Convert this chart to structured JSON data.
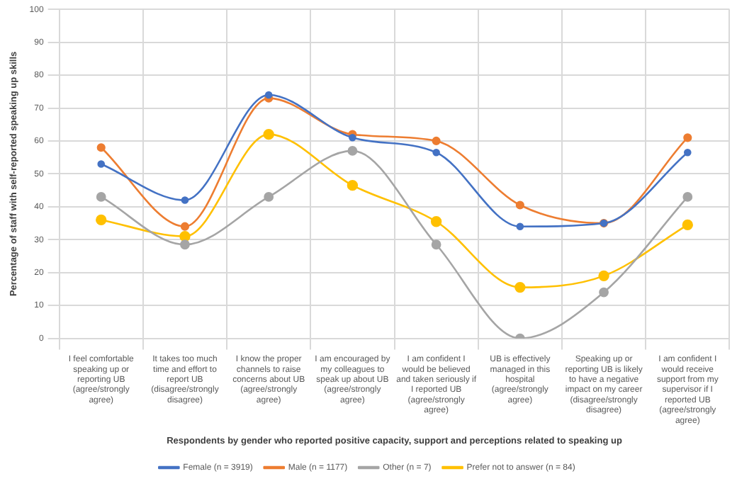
{
  "chart_data": {
    "type": "line",
    "xlabel": "Respondents by gender who reported positive capacity, support and perceptions related to speaking up",
    "ylabel": "Percentage of staff with self-reported speaking up skills",
    "categories": [
      "I feel comfortable speaking up or reporting UB (agree/strongly agree)",
      "It takes too much time and effort to report UB (disagree/strongly disagree)",
      "I know the proper channels to raise concerns about UB (agree/strongly agree)",
      "I am encouraged by my colleagues to speak up about UB (agree/strongly agree)",
      "I am confident I would be believed and taken seriously if I reported UB (agree/strongly agree)",
      "UB is effectively managed in this hospital (agree/strongly agree)",
      "Speaking up or reporting UB is likely to have a negative impact on my career (disagree/strongly disagree)",
      "I am confident I would receive support from my supervisor if I reported UB (agree/strongly agree)"
    ],
    "series": [
      {
        "name": "Female (n = 3919)",
        "color": "#4472c4",
        "values": [
          53,
          42,
          74,
          61,
          56.5,
          34,
          35,
          56.5
        ]
      },
      {
        "name": "Male (n = 1177)",
        "color": "#ed7d31",
        "values": [
          58,
          34,
          73,
          62,
          60,
          40.5,
          35,
          61
        ]
      },
      {
        "name": "Other (n = 7)",
        "color": "#a5a5a5",
        "values": [
          43,
          28.5,
          43,
          57,
          28.5,
          0,
          14,
          43
        ]
      },
      {
        "name": "Prefer not to answer (n = 84)",
        "color": "#ffc000",
        "values": [
          36,
          31,
          62,
          46.5,
          35.5,
          15.5,
          19,
          34.5
        ]
      }
    ],
    "ylim": [
      0,
      100
    ],
    "yticks": [
      0,
      10,
      20,
      30,
      40,
      50,
      60,
      70,
      80,
      90,
      100
    ],
    "grid": true,
    "legend": "bottom",
    "marker": "circle"
  }
}
